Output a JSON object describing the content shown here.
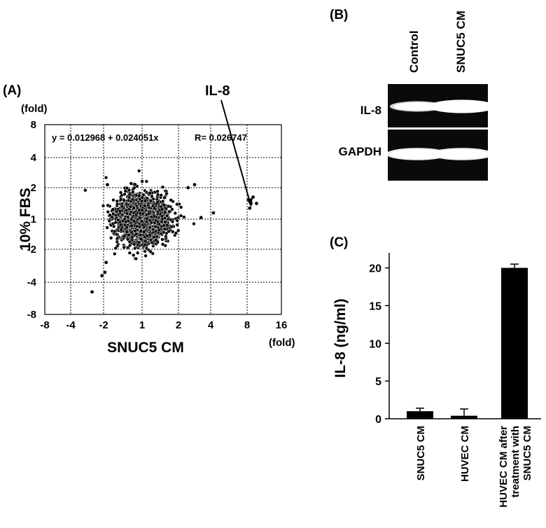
{
  "chart_data": [
    {
      "type": "scatter",
      "panel_label": "(A)",
      "ylabel": "10% FBS",
      "xlabel": "SNUC5 CM",
      "y_unit": "(fold)",
      "x_unit": "(fold)",
      "x_ticks": [
        "-8",
        "-4",
        "-2",
        "1",
        "2",
        "4",
        "8",
        "16"
      ],
      "y_ticks": [
        "8",
        "4",
        "2",
        "1",
        "-2",
        "-4",
        "-8"
      ],
      "equation": "y = 0.012968 + 0.024051x",
      "r_value": "R= 0.026747",
      "annotation": "IL-8",
      "grid": true,
      "points": [
        [
          8.6,
          1.35
        ],
        [
          9.4,
          1.7
        ],
        [
          10.2,
          1.5
        ],
        [
          8.9,
          1.5
        ],
        [
          -2.7,
          -5.2
        ],
        [
          -2.1,
          -3.6
        ],
        [
          -1.9,
          -3.4
        ],
        [
          -1.8,
          -2.8
        ],
        [
          -1.7,
          2.2
        ],
        [
          3.0,
          2.2
        ],
        [
          2.6,
          2.0
        ],
        [
          4.3,
          1.2
        ],
        [
          3.4,
          1.05
        ]
      ]
    },
    {
      "type": "gel",
      "panel_label": "(B)",
      "lanes": [
        "Control",
        "SNUC5 CM"
      ],
      "rows": [
        {
          "label": "IL-8",
          "intensity": [
            0.6,
            1.0
          ]
        },
        {
          "label": "GAPDH",
          "intensity": [
            0.85,
            0.85
          ]
        }
      ]
    },
    {
      "type": "bar",
      "panel_label": "(C)",
      "ylabel": "IL-8 (ng/ml)",
      "categories": [
        "SNUC5 CM",
        "HUVEC CM",
        "HUVEC CM after treatment with SNUC5 CM"
      ],
      "category_lines": [
        [
          "SNUC5 CM"
        ],
        [
          "HUVEC CM"
        ],
        [
          "HUVEC CM after",
          "treatment with",
          "SNUC5 CM"
        ]
      ],
      "values": [
        1.0,
        0.4,
        20.0
      ],
      "errors": [
        0.4,
        0.9,
        0.5
      ],
      "ylim": [
        0,
        22
      ],
      "yticks": [
        0,
        5,
        10,
        15,
        20
      ]
    }
  ]
}
